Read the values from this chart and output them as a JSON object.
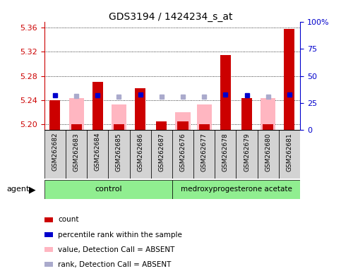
{
  "title": "GDS3194 / 1424234_s_at",
  "samples": [
    "GSM262682",
    "GSM262683",
    "GSM262684",
    "GSM262685",
    "GSM262686",
    "GSM262687",
    "GSM262676",
    "GSM262677",
    "GSM262678",
    "GSM262679",
    "GSM262680",
    "GSM262681"
  ],
  "red_values": [
    5.24,
    5.2,
    5.27,
    5.2,
    5.26,
    5.204,
    5.205,
    5.2,
    5.315,
    5.243,
    5.2,
    5.358
  ],
  "pink_values": [
    null,
    5.243,
    null,
    5.232,
    null,
    null,
    5.22,
    5.232,
    null,
    null,
    5.243,
    null
  ],
  "blue_sq_values": [
    5.248,
    null,
    5.248,
    null,
    5.249,
    null,
    null,
    null,
    5.249,
    5.248,
    null,
    5.249
  ],
  "purple_sq_values": [
    null,
    5.247,
    null,
    5.246,
    null,
    5.245,
    5.245,
    5.246,
    null,
    null,
    5.246,
    null
  ],
  "ylim": [
    5.19,
    5.37
  ],
  "yticks": [
    5.2,
    5.24,
    5.28,
    5.32,
    5.36
  ],
  "right_yticks": [
    0,
    25,
    50,
    75,
    100
  ],
  "bar_color": "#CC0000",
  "pink_color": "#FFB6C1",
  "blue_color": "#0000CC",
  "purple_color": "#AAAACC",
  "axis_color_left": "#CC0000",
  "axis_color_right": "#0000CC",
  "bar_width": 0.5,
  "pink_bar_width": 0.7,
  "base_value": 5.19,
  "plot_bg": "#FFFFFF",
  "label_box_color": "#D3D3D3",
  "group_green": "#90EE90",
  "legend_labels": [
    "count",
    "percentile rank within the sample",
    "value, Detection Call = ABSENT",
    "rank, Detection Call = ABSENT"
  ],
  "legend_colors": [
    "#CC0000",
    "#0000CC",
    "#FFB6C1",
    "#AAAACC"
  ]
}
